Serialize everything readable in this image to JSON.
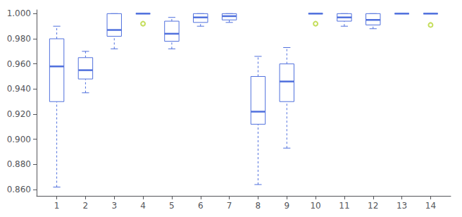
{
  "chart_data": {
    "type": "boxplot",
    "x": [
      1,
      2,
      3,
      4,
      5,
      6,
      7,
      8,
      9,
      10,
      11,
      12,
      13,
      14
    ],
    "boxes": [
      {
        "q1": 0.93,
        "median": 0.958,
        "q3": 0.98,
        "whislo": 0.862,
        "whishi": 0.99,
        "fliers": []
      },
      {
        "q1": 0.948,
        "median": 0.955,
        "q3": 0.965,
        "whislo": 0.937,
        "whishi": 0.97,
        "fliers": []
      },
      {
        "q1": 0.982,
        "median": 0.987,
        "q3": 1.0,
        "whislo": 0.972,
        "whishi": 1.0,
        "fliers": []
      },
      {
        "q1": 1.0,
        "median": 1.0,
        "q3": 1.0,
        "whislo": 1.0,
        "whishi": 1.0,
        "fliers": [
          0.992
        ]
      },
      {
        "q1": 0.978,
        "median": 0.984,
        "q3": 0.994,
        "whislo": 0.972,
        "whishi": 0.997,
        "fliers": []
      },
      {
        "q1": 0.993,
        "median": 0.997,
        "q3": 1.0,
        "whislo": 0.99,
        "whishi": 1.0,
        "fliers": []
      },
      {
        "q1": 0.995,
        "median": 0.998,
        "q3": 1.0,
        "whislo": 0.993,
        "whishi": 1.0,
        "fliers": []
      },
      {
        "q1": 0.912,
        "median": 0.922,
        "q3": 0.95,
        "whislo": 0.864,
        "whishi": 0.966,
        "fliers": []
      },
      {
        "q1": 0.93,
        "median": 0.946,
        "q3": 0.96,
        "whislo": 0.893,
        "whishi": 0.973,
        "fliers": []
      },
      {
        "q1": 1.0,
        "median": 1.0,
        "q3": 1.0,
        "whislo": 1.0,
        "whishi": 1.0,
        "fliers": [
          0.992
        ]
      },
      {
        "q1": 0.994,
        "median": 0.997,
        "q3": 1.0,
        "whislo": 0.99,
        "whishi": 1.0,
        "fliers": []
      },
      {
        "q1": 0.991,
        "median": 0.995,
        "q3": 1.0,
        "whislo": 0.988,
        "whishi": 1.0,
        "fliers": []
      },
      {
        "q1": 1.0,
        "median": 1.0,
        "q3": 1.0,
        "whislo": 1.0,
        "whishi": 1.0,
        "fliers": []
      },
      {
        "q1": 1.0,
        "median": 1.0,
        "q3": 1.0,
        "whislo": 1.0,
        "whishi": 1.0,
        "fliers": [
          0.991
        ]
      }
    ],
    "xlim": [
      0.3,
      14.7
    ],
    "xticks": [
      1,
      2,
      3,
      4,
      5,
      6,
      7,
      8,
      9,
      10,
      11,
      12,
      13,
      14
    ],
    "ylim": [
      0.855,
      1.003
    ],
    "yticks": [
      {
        "value": 0.86,
        "label": "0.860"
      },
      {
        "value": 0.88,
        "label": "0.880"
      },
      {
        "value": 0.9,
        "label": "0.900"
      },
      {
        "value": 0.92,
        "label": "0.920"
      },
      {
        "value": 0.94,
        "label": "0.940"
      },
      {
        "value": 0.96,
        "label": "0.960"
      },
      {
        "value": 0.98,
        "label": "0.980"
      },
      {
        "value": 1.0,
        "label": "1.000"
      }
    ],
    "grid": false
  }
}
